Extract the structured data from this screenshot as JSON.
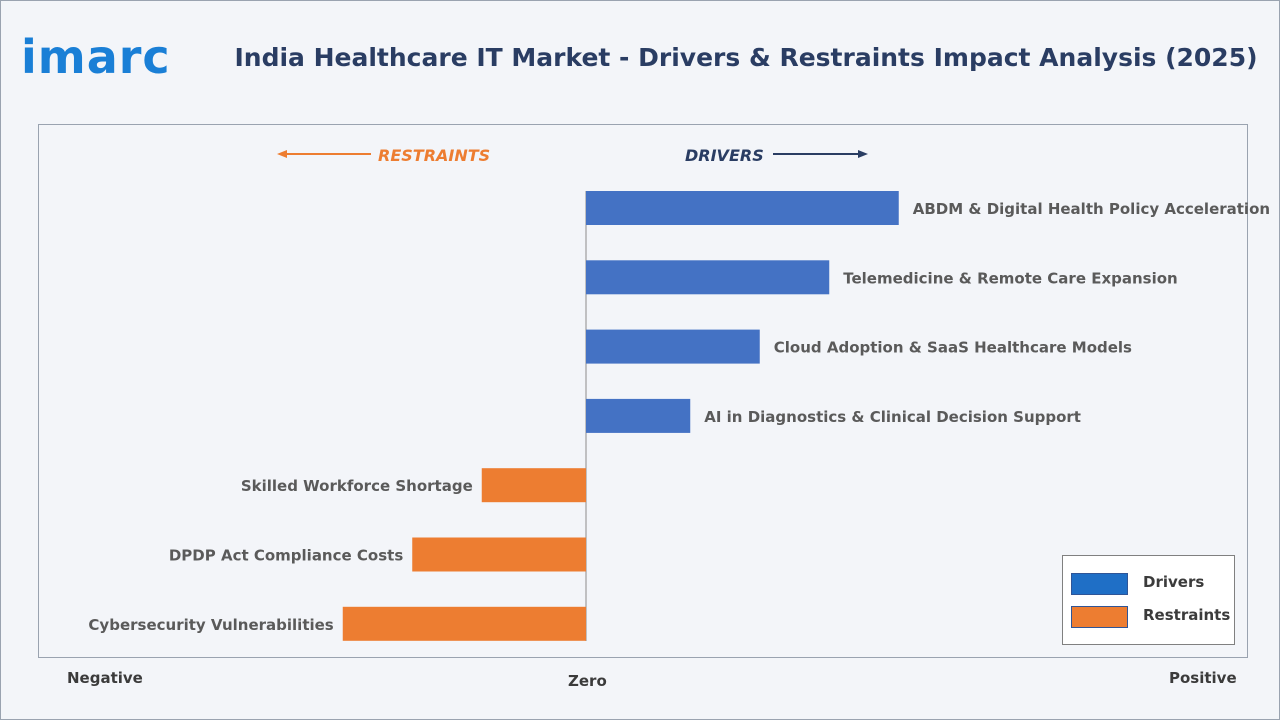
{
  "brand": {
    "logo_text": "imarc",
    "color": "#1a7fd6"
  },
  "title": "India Healthcare IT Market - Drivers & Restraints Impact Analysis (2025)",
  "axis_words": {
    "negative": "Negative",
    "zero": "Zero",
    "positive": "Positive"
  },
  "direction_labels": {
    "restraints": "RESTRAINTS",
    "drivers": "DRIVERS"
  },
  "colors": {
    "drivers": "#4472c4",
    "restraints": "#ed7d31",
    "arrow_drivers": "#2a3d63",
    "arrow_restraints": "#ed7d31"
  },
  "legend": [
    {
      "label": "Drivers",
      "color": "#1f6fc6"
    },
    {
      "label": "Restraints",
      "color": "#ed7d31"
    }
  ],
  "chart_data": {
    "type": "bar",
    "orientation": "horizontal",
    "title": "India Healthcare IT Market - Drivers & Restraints Impact Analysis (2025)",
    "xlabel": "",
    "ylabel": "",
    "xlim": [
      -7.0,
      9.0
    ],
    "grid": false,
    "legend_position": "bottom-right",
    "categories": [
      "ABDM & Digital Health Policy Acceleration",
      "Telemedicine & Remote Care Expansion",
      "Cloud Adoption & SaaS Healthcare Models",
      "AI in Diagnostics & Clinical Decision Support",
      "Skilled Workforce Shortage",
      "DPDP Act Compliance Costs",
      "Cybersecurity Vulnerabilities"
    ],
    "series": [
      {
        "name": "Drivers",
        "values": [
          4.5,
          3.5,
          2.5,
          1.5,
          null,
          null,
          null
        ]
      },
      {
        "name": "Restraints",
        "values": [
          null,
          null,
          null,
          null,
          -1.5,
          -2.5,
          -3.5
        ]
      }
    ]
  }
}
